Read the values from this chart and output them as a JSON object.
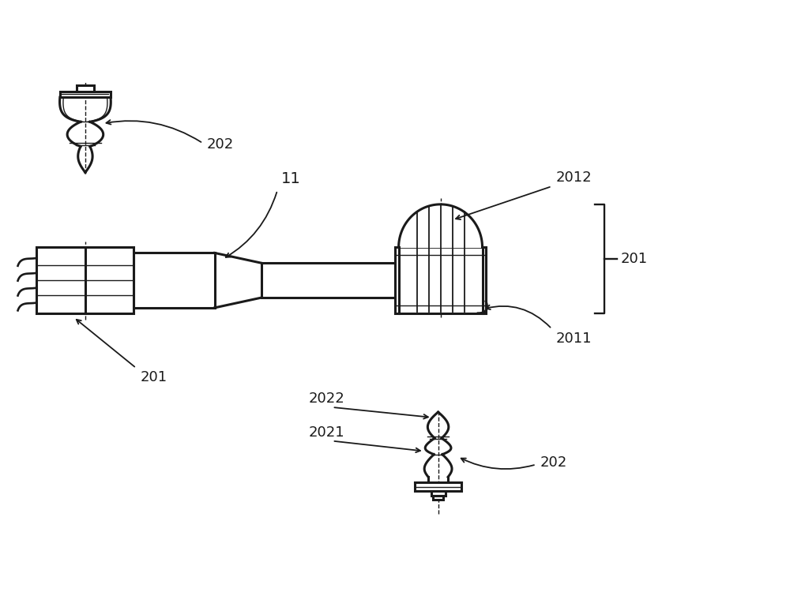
{
  "bg_color": "#ffffff",
  "line_color": "#1a1a1a",
  "line_width": 2.2,
  "thin_line": 1.0,
  "font_size": 13,
  "labels": {
    "202_top": "202",
    "11": "11",
    "2012": "2012",
    "201_bracket": "201",
    "2011": "2011",
    "201_bottom": "201",
    "2022": "2022",
    "2021": "2021",
    "202_bottom": "202"
  }
}
